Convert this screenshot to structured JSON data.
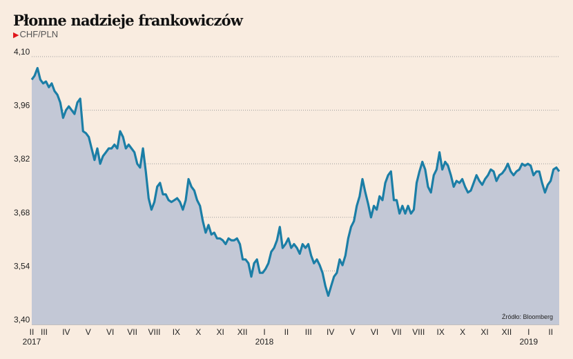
{
  "chart_data": {
    "type": "area",
    "title": "Płonne nadzieje frankowiczów",
    "subtitle": "CHF/PLN",
    "source": "Źródło: Bloomberg",
    "ylim": [
      3.4,
      4.1
    ],
    "yticks": [
      "3,40",
      "3,54",
      "3,68",
      "3,82",
      "3,96",
      "4,10"
    ],
    "ytick_values": [
      3.4,
      3.54,
      3.68,
      3.82,
      3.96,
      4.1
    ],
    "grid": true,
    "x_start_month": -0.35,
    "x_end_month": 23.35,
    "xticks": [
      "II",
      "III",
      "IV",
      "V",
      "VI",
      "VII",
      "VIII",
      "IX",
      "X",
      "XI",
      "XII",
      "I",
      "II",
      "III",
      "IV",
      "V",
      "VI",
      "VII",
      "VIII",
      "IX",
      "X",
      "XI",
      "XII",
      "I",
      "II"
    ],
    "xtick_months": [
      -0.35,
      0,
      1,
      2,
      3,
      4,
      5,
      6,
      7,
      8,
      9,
      10,
      11,
      12,
      13,
      14,
      15,
      16,
      17,
      18,
      19,
      20,
      21,
      22,
      23
    ],
    "years": [
      {
        "label": "2017",
        "month": -0.35
      },
      {
        "label": "2018",
        "month": 10
      },
      {
        "label": "2019",
        "month": 22
      }
    ],
    "values": [
      4.04,
      4.05,
      4.07,
      4.04,
      4.03,
      4.035,
      4.02,
      4.03,
      4.01,
      4.0,
      3.98,
      3.94,
      3.96,
      3.97,
      3.96,
      3.95,
      3.98,
      3.99,
      3.905,
      3.9,
      3.89,
      3.86,
      3.83,
      3.86,
      3.82,
      3.84,
      3.85,
      3.86,
      3.86,
      3.87,
      3.86,
      3.905,
      3.89,
      3.86,
      3.87,
      3.86,
      3.85,
      3.82,
      3.81,
      3.86,
      3.8,
      3.73,
      3.7,
      3.72,
      3.76,
      3.77,
      3.74,
      3.74,
      3.725,
      3.72,
      3.725,
      3.73,
      3.72,
      3.7,
      3.725,
      3.78,
      3.76,
      3.75,
      3.725,
      3.71,
      3.67,
      3.64,
      3.66,
      3.635,
      3.64,
      3.625,
      3.625,
      3.62,
      3.61,
      3.625,
      3.62,
      3.62,
      3.625,
      3.61,
      3.57,
      3.57,
      3.56,
      3.525,
      3.56,
      3.57,
      3.535,
      3.535,
      3.545,
      3.56,
      3.59,
      3.6,
      3.62,
      3.655,
      3.6,
      3.61,
      3.625,
      3.6,
      3.61,
      3.6,
      3.585,
      3.61,
      3.6,
      3.61,
      3.58,
      3.56,
      3.57,
      3.555,
      3.535,
      3.5,
      3.475,
      3.5,
      3.525,
      3.535,
      3.57,
      3.555,
      3.58,
      3.625,
      3.655,
      3.67,
      3.71,
      3.735,
      3.78,
      3.745,
      3.715,
      3.68,
      3.71,
      3.7,
      3.735,
      3.725,
      3.77,
      3.79,
      3.8,
      3.725,
      3.725,
      3.69,
      3.71,
      3.69,
      3.71,
      3.69,
      3.7,
      3.77,
      3.8,
      3.825,
      3.805,
      3.76,
      3.745,
      3.79,
      3.805,
      3.85,
      3.805,
      3.825,
      3.815,
      3.79,
      3.76,
      3.775,
      3.77,
      3.78,
      3.76,
      3.745,
      3.75,
      3.77,
      3.79,
      3.775,
      3.765,
      3.78,
      3.79,
      3.805,
      3.8,
      3.775,
      3.79,
      3.795,
      3.805,
      3.82,
      3.8,
      3.79,
      3.8,
      3.805,
      3.82,
      3.815,
      3.82,
      3.815,
      3.79,
      3.8,
      3.8,
      3.77,
      3.745,
      3.765,
      3.775,
      3.805,
      3.81,
      3.8
    ],
    "colors": {
      "line": "#1b7ea6",
      "fill": "#c3c8d6",
      "grid": "#9a9a9a",
      "background": "#f9ece0",
      "marker": "#e0161b"
    }
  }
}
